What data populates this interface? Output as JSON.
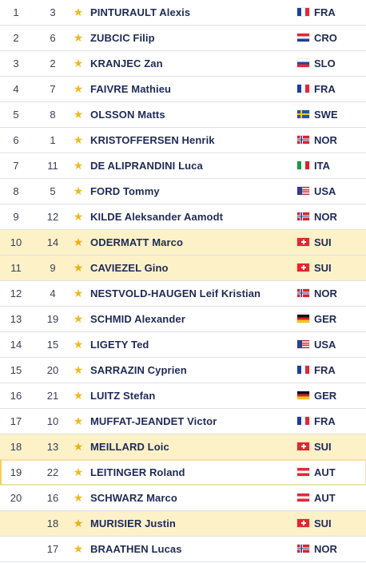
{
  "results": {
    "rows": [
      {
        "rank": "1",
        "bib": "3",
        "name": "PINTURAULT Alexis",
        "nation": "FRA",
        "flag": "FRA-flag-icon",
        "highlight": false
      },
      {
        "rank": "2",
        "bib": "6",
        "name": "ZUBCIC Filip",
        "nation": "CRO",
        "flag": "CRO-flag-icon",
        "highlight": false
      },
      {
        "rank": "3",
        "bib": "2",
        "name": "KRANJEC Zan",
        "nation": "SLO",
        "flag": "SLO-flag-icon",
        "highlight": false
      },
      {
        "rank": "4",
        "bib": "7",
        "name": "FAIVRE Mathieu",
        "nation": "FRA",
        "flag": "FRA-flag-icon",
        "highlight": false
      },
      {
        "rank": "5",
        "bib": "8",
        "name": "OLSSON Matts",
        "nation": "SWE",
        "flag": "SWE-flag-icon",
        "highlight": false
      },
      {
        "rank": "6",
        "bib": "1",
        "name": "KRISTOFFERSEN Henrik",
        "nation": "NOR",
        "flag": "NOR-flag-icon",
        "highlight": false
      },
      {
        "rank": "7",
        "bib": "11",
        "name": "DE ALIPRANDINI Luca",
        "nation": "ITA",
        "flag": "ITA-flag-icon",
        "highlight": false
      },
      {
        "rank": "8",
        "bib": "5",
        "name": "FORD Tommy",
        "nation": "USA",
        "flag": "USA-flag-icon",
        "highlight": false
      },
      {
        "rank": "9",
        "bib": "12",
        "name": "KILDE Aleksander Aamodt",
        "nation": "NOR",
        "flag": "NOR-flag-icon",
        "highlight": false
      },
      {
        "rank": "10",
        "bib": "14",
        "name": "ODERMATT Marco",
        "nation": "SUI",
        "flag": "SUI-flag-icon",
        "highlight": true
      },
      {
        "rank": "11",
        "bib": "9",
        "name": "CAVIEZEL Gino",
        "nation": "SUI",
        "flag": "SUI-flag-icon",
        "highlight": true
      },
      {
        "rank": "12",
        "bib": "4",
        "name": "NESTVOLD-HAUGEN Leif Kristian",
        "nation": "NOR",
        "flag": "NOR-flag-icon",
        "highlight": false
      },
      {
        "rank": "13",
        "bib": "19",
        "name": "SCHMID Alexander",
        "nation": "GER",
        "flag": "GER-flag-icon",
        "highlight": false
      },
      {
        "rank": "14",
        "bib": "15",
        "name": "LIGETY Ted",
        "nation": "USA",
        "flag": "USA-flag-icon",
        "highlight": false
      },
      {
        "rank": "15",
        "bib": "20",
        "name": "SARRAZIN Cyprien",
        "nation": "FRA",
        "flag": "FRA-flag-icon",
        "highlight": false
      },
      {
        "rank": "16",
        "bib": "21",
        "name": "LUITZ Stefan",
        "nation": "GER",
        "flag": "GER-flag-icon",
        "highlight": false
      },
      {
        "rank": "17",
        "bib": "10",
        "name": "MUFFAT-JEANDET Victor",
        "nation": "FRA",
        "flag": "FRA-flag-icon",
        "highlight": false
      },
      {
        "rank": "18",
        "bib": "13",
        "name": "MEILLARD Loic",
        "nation": "SUI",
        "flag": "SUI-flag-icon",
        "highlight": true
      },
      {
        "rank": "19",
        "bib": "22",
        "name": "LEITINGER Roland",
        "nation": "AUT",
        "flag": "AUT-flag-icon",
        "highlight": false
      },
      {
        "rank": "20",
        "bib": "16",
        "name": "SCHWARZ Marco",
        "nation": "AUT",
        "flag": "AUT-flag-icon",
        "highlight": false
      },
      {
        "rank": "",
        "bib": "18",
        "name": "MURISIER Justin",
        "nation": "SUI",
        "flag": "SUI-flag-icon",
        "highlight": true
      },
      {
        "rank": "",
        "bib": "17",
        "name": "BRAATHEN Lucas",
        "nation": "NOR",
        "flag": "NOR-flag-icon",
        "highlight": false
      }
    ],
    "star_icon": "star-icon",
    "colors": {
      "highlight_row": "#fdf1c8",
      "star": "#f2b91c",
      "name_text": "#1f2a56",
      "row_divider": "#dfe1e6"
    }
  }
}
